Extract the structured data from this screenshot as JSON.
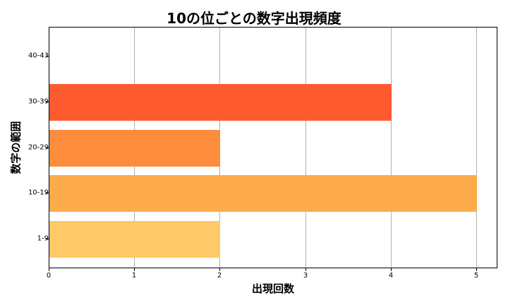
{
  "chart_data": {
    "type": "bar",
    "orientation": "horizontal",
    "title": "10の位ごとの数字出現頻度",
    "xlabel": "出現回数",
    "ylabel": "数字の範囲",
    "categories": [
      "1-9",
      "10-19",
      "20-29",
      "30-39",
      "40-43"
    ],
    "values": [
      2,
      5,
      2,
      4,
      0
    ],
    "colors": [
      "#fec966",
      "#fdab4a",
      "#fd8c3c",
      "#fd5b2f",
      "#f02020"
    ],
    "xlim": [
      0,
      5.25
    ],
    "xticks": [
      "0",
      "1",
      "2",
      "3",
      "4",
      "5"
    ],
    "grid": {
      "x": true,
      "y": false
    },
    "legend": null
  }
}
